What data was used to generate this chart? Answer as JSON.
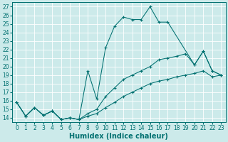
{
  "xlabel": "Humidex (Indice chaleur)",
  "ylabel": "",
  "ylim": [
    13.5,
    27.5
  ],
  "xlim": [
    -0.5,
    23.5
  ],
  "yticks": [
    14,
    15,
    16,
    17,
    18,
    19,
    20,
    21,
    22,
    23,
    24,
    25,
    26,
    27
  ],
  "xticks": [
    0,
    1,
    2,
    3,
    4,
    5,
    6,
    7,
    8,
    9,
    10,
    11,
    12,
    13,
    14,
    15,
    16,
    17,
    18,
    19,
    20,
    21,
    22,
    23
  ],
  "series1_x": [
    0,
    1,
    2,
    3,
    4,
    5,
    6,
    7,
    8,
    9,
    10,
    11,
    12,
    13,
    14,
    15,
    16,
    17,
    20,
    21,
    22,
    23
  ],
  "series1_y": [
    15.8,
    14.2,
    15.2,
    14.3,
    14.8,
    13.8,
    14.0,
    13.8,
    19.5,
    16.2,
    22.2,
    24.7,
    25.8,
    25.5,
    25.5,
    27.0,
    25.2,
    25.2,
    20.2,
    21.8,
    19.5,
    19.0
  ],
  "series2_x": [
    0,
    1,
    2,
    3,
    4,
    5,
    6,
    7,
    8,
    9,
    10,
    11,
    12,
    13,
    14,
    15,
    16,
    17,
    18,
    19,
    20,
    21,
    22,
    23
  ],
  "series2_y": [
    15.8,
    14.2,
    15.2,
    14.3,
    14.8,
    13.8,
    14.0,
    13.8,
    14.5,
    15.0,
    16.5,
    17.5,
    18.5,
    19.0,
    19.5,
    20.0,
    20.8,
    21.0,
    21.2,
    21.5,
    20.2,
    21.8,
    19.5,
    19.0
  ],
  "series3_x": [
    0,
    1,
    2,
    3,
    4,
    5,
    6,
    7,
    8,
    9,
    10,
    11,
    12,
    13,
    14,
    15,
    16,
    17,
    18,
    19,
    20,
    21,
    22,
    23
  ],
  "series3_y": [
    15.8,
    14.2,
    15.2,
    14.3,
    14.8,
    13.8,
    14.0,
    13.8,
    14.2,
    14.5,
    15.2,
    15.8,
    16.5,
    17.0,
    17.5,
    18.0,
    18.3,
    18.5,
    18.8,
    19.0,
    19.2,
    19.5,
    18.8,
    19.0
  ],
  "line_color": "#007070",
  "bg_color": "#cceaea",
  "grid_color": "#b0d8d8",
  "tick_fontsize": 5.5,
  "label_fontsize": 7
}
